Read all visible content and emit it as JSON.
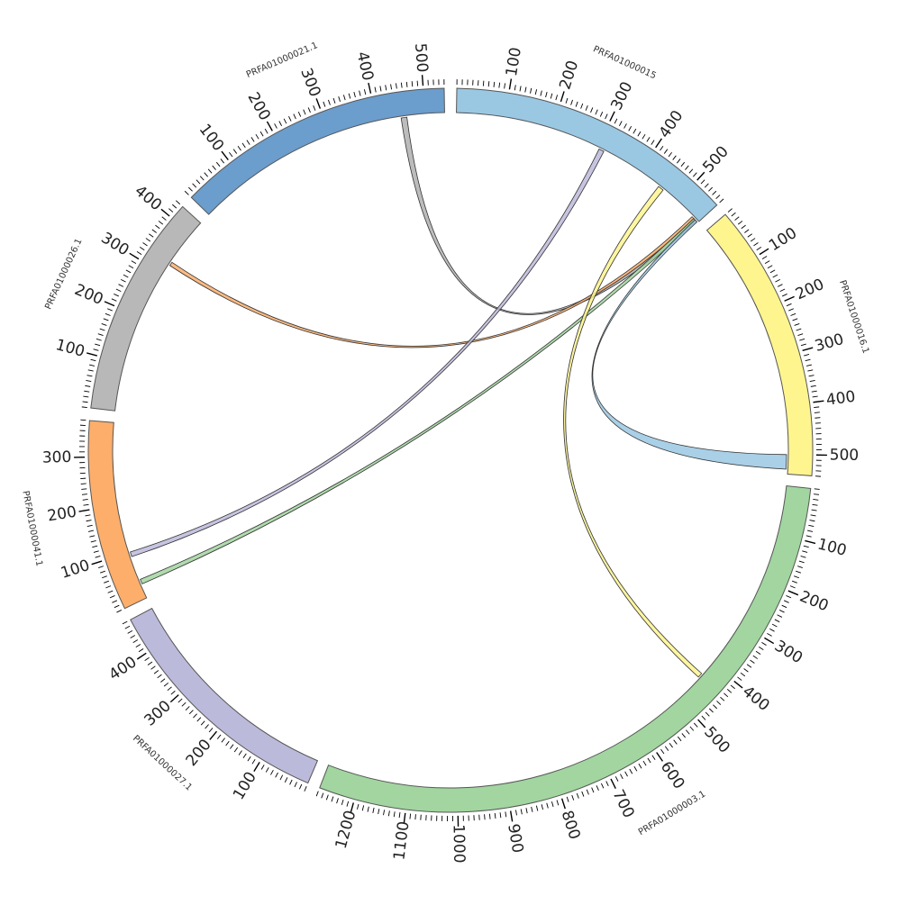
{
  "chart_data": {
    "type": "chord",
    "segments": [
      {
        "name": "PRFA01000015",
        "length": 560,
        "color": "#9ac8e3",
        "ticks": [
          "100",
          "200",
          "300",
          "400",
          "500"
        ]
      },
      {
        "name": "PRFA01000016.1",
        "length": 540,
        "color": "#fef58f",
        "ticks": [
          "100",
          "200",
          "300",
          "400",
          "500"
        ]
      },
      {
        "name": "PRFA01000003.1",
        "length": 1270,
        "color": "#a2d5a0",
        "ticks": [
          "100",
          "200",
          "300",
          "400",
          "500",
          "600",
          "700",
          "800",
          "900",
          "1000",
          "1100",
          "1200"
        ]
      },
      {
        "name": "PRFA01000027.1",
        "length": 470,
        "color": "#bcbadb",
        "ticks": [
          "100",
          "200",
          "300",
          "400"
        ]
      },
      {
        "name": "PRFA01000041.1",
        "length": 370,
        "color": "#fdae6b",
        "ticks": [
          "100",
          "200",
          "300"
        ]
      },
      {
        "name": "PRFA01000026.1",
        "length": 430,
        "color": "#b8b8b8",
        "ticks": [
          "100",
          "200",
          "300",
          "400"
        ]
      },
      {
        "name": "PRFA01000021.1",
        "length": 540,
        "color": "#6b9dcd",
        "ticks": [
          "100",
          "200",
          "300",
          "400",
          "500"
        ]
      }
    ],
    "links": [
      {
        "from": "PRFA01000021.1",
        "from_start": 450,
        "from_end": 462,
        "to": "PRFA01000015",
        "to_start": 548,
        "to_end": 556,
        "color": "#b0b0b0"
      },
      {
        "from": "PRFA01000026.1",
        "from_start": 322,
        "from_end": 330,
        "to": "PRFA01000015",
        "to_start": 543,
        "to_end": 550,
        "color": "#fdae6b"
      },
      {
        "from": "PRFA01000015",
        "from_start": 305,
        "from_end": 316,
        "to": "PRFA01000041.1",
        "to_start": 90,
        "to_end": 100,
        "color": "#bcbadb"
      },
      {
        "from": "PRFA01000015",
        "from_start": 548,
        "from_end": 556,
        "to": "PRFA01000041.1",
        "to_start": 30,
        "to_end": 40,
        "color": "#a2d5a0"
      },
      {
        "from": "PRFA01000015",
        "from_start": 450,
        "from_end": 462,
        "to": "PRFA01000003.1",
        "to_start": 430,
        "to_end": 440,
        "color": "#fef58f"
      },
      {
        "from": "PRFA01000015",
        "from_start": 552,
        "from_end": 558,
        "to": "PRFA01000016.1",
        "to_start": 500,
        "to_end": 530,
        "color": "#9ac8e3"
      }
    ]
  }
}
